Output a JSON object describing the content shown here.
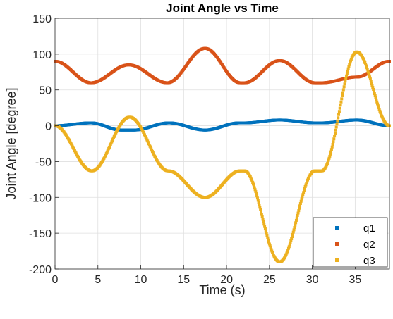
{
  "chart_data": {
    "type": "scatter",
    "title": "Joint Angle vs Time",
    "xlabel": "Time (s)",
    "ylabel": "Joint Angle [degree]",
    "xlim": [
      0,
      39
    ],
    "ylim": [
      -200,
      150
    ],
    "xticks": [
      0,
      5,
      10,
      15,
      20,
      25,
      30,
      35
    ],
    "yticks": [
      -200,
      -150,
      -100,
      -50,
      0,
      50,
      100,
      150
    ],
    "grid": true,
    "legend_position": "bottom-right",
    "series": [
      {
        "name": "q1",
        "color": "#0072BD",
        "keyframes": [
          [
            0,
            0
          ],
          [
            4.2,
            4
          ],
          [
            7.7,
            -6
          ],
          [
            9.2,
            -6
          ],
          [
            13.3,
            4
          ],
          [
            17.5,
            -6
          ],
          [
            21.5,
            4
          ],
          [
            22.1,
            4
          ],
          [
            26.2,
            8
          ],
          [
            30.3,
            4
          ],
          [
            31.1,
            4
          ],
          [
            35.2,
            8
          ],
          [
            39,
            0
          ]
        ]
      },
      {
        "name": "q2",
        "color": "#D95319",
        "keyframes": [
          [
            0,
            90
          ],
          [
            4.2,
            60
          ],
          [
            8.6,
            85
          ],
          [
            13.1,
            60
          ],
          [
            17.5,
            108
          ],
          [
            21.6,
            60
          ],
          [
            22.1,
            60
          ],
          [
            26.2,
            91
          ],
          [
            30.3,
            60
          ],
          [
            31.1,
            60
          ],
          [
            35.2,
            68
          ],
          [
            39,
            90
          ]
        ]
      },
      {
        "name": "q3",
        "color": "#EDB120",
        "keyframes": [
          [
            0,
            0
          ],
          [
            4.3,
            -63
          ],
          [
            8.7,
            12
          ],
          [
            13.2,
            -63
          ],
          [
            17.5,
            -100
          ],
          [
            21.6,
            -63
          ],
          [
            22.1,
            -63
          ],
          [
            26.2,
            -190
          ],
          [
            30.3,
            -63
          ],
          [
            31.1,
            -63
          ],
          [
            35.2,
            103
          ],
          [
            39,
            0
          ]
        ]
      }
    ]
  }
}
